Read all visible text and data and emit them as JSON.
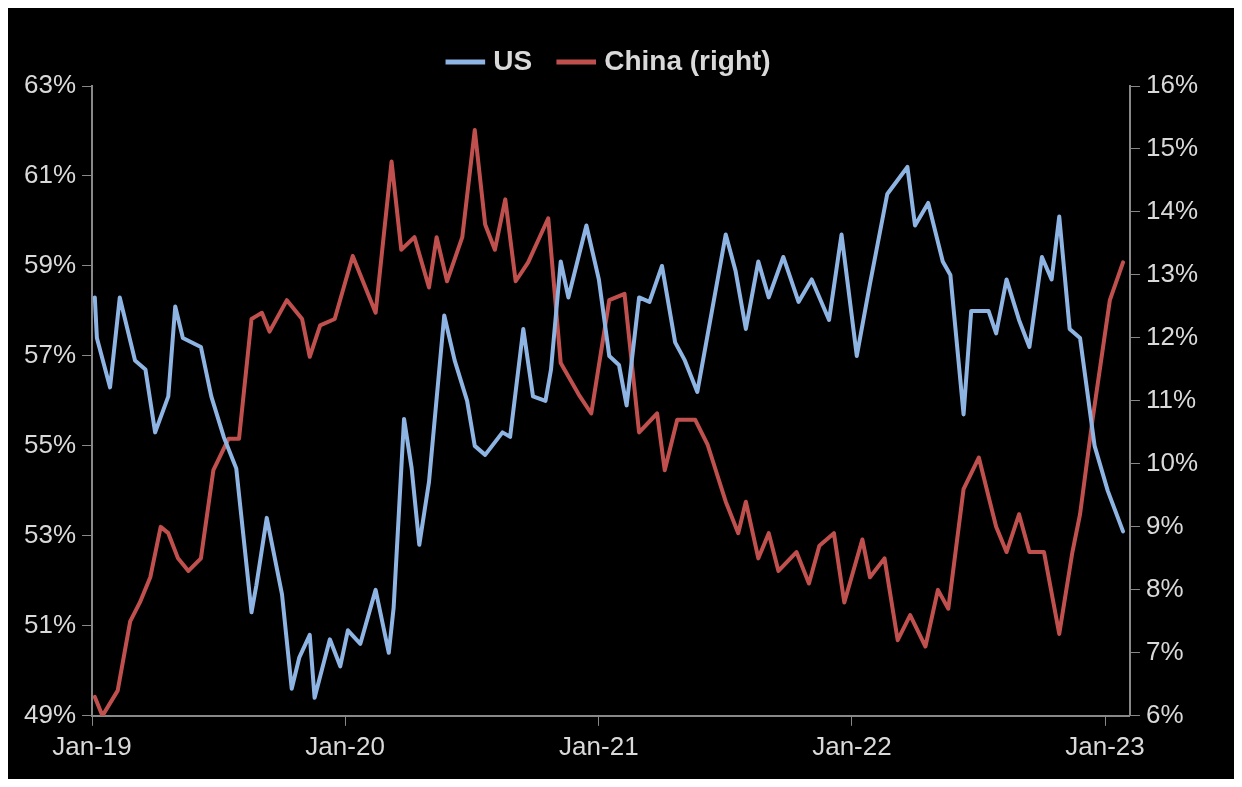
{
  "chart_data": {
    "type": "line",
    "legend": "top",
    "marker": "none",
    "line_style": "solid",
    "grid": false,
    "xlim": [
      "2019-01-01",
      "2023-02-06"
    ],
    "xticks": [
      {
        "value": "2019-01",
        "label": "Jan-19"
      },
      {
        "value": "2020-01",
        "label": "Jan-20"
      },
      {
        "value": "2021-01",
        "label": "Jan-21"
      },
      {
        "value": "2022-01",
        "label": "Jan-22"
      },
      {
        "value": "2023-01",
        "label": "Jan-23"
      }
    ],
    "ylim": [
      49,
      63
    ],
    "yticks": [
      {
        "value": 49,
        "label": "49%"
      },
      {
        "value": 51,
        "label": "51%"
      },
      {
        "value": 53,
        "label": "53%"
      },
      {
        "value": 55,
        "label": "55%"
      },
      {
        "value": 57,
        "label": "57%"
      },
      {
        "value": 59,
        "label": "59%"
      },
      {
        "value": 61,
        "label": "61%"
      },
      {
        "value": 63,
        "label": "63%"
      }
    ],
    "y2lim": [
      6,
      16
    ],
    "y2ticks": [
      {
        "value": 6,
        "label": "6%"
      },
      {
        "value": 7,
        "label": "7%"
      },
      {
        "value": 8,
        "label": "8%"
      },
      {
        "value": 9,
        "label": "9%"
      },
      {
        "value": 10,
        "label": "10%"
      },
      {
        "value": 11,
        "label": "11%"
      },
      {
        "value": 12,
        "label": "12%"
      },
      {
        "value": 13,
        "label": "13%"
      },
      {
        "value": 14,
        "label": "14%"
      },
      {
        "value": 15,
        "label": "15%"
      },
      {
        "value": 16,
        "label": "16%"
      }
    ],
    "series": [
      {
        "name": "US",
        "color": "#8db4e2",
        "x": [
          "2019-01-05",
          "2019-01-08",
          "2019-01-27",
          "2019-02-10",
          "2019-03-04",
          "2019-03-19",
          "2019-04-02",
          "2019-04-21",
          "2019-05-01",
          "2019-05-12",
          "2019-06-07",
          "2019-06-22",
          "2019-07-10",
          "2019-07-28",
          "2019-08-19",
          "2019-08-26",
          "2019-09-10",
          "2019-10-02",
          "2019-10-16",
          "2019-10-27",
          "2019-11-11",
          "2019-11-18",
          "2019-12-10",
          "2019-12-25",
          "2020-01-05",
          "2020-01-23",
          "2020-02-14",
          "2020-03-04",
          "2020-03-11",
          "2020-03-26",
          "2020-04-06",
          "2020-04-17",
          "2020-05-01",
          "2020-05-23",
          "2020-06-07",
          "2020-06-25",
          "2020-07-06",
          "2020-07-21",
          "2020-08-15",
          "2020-08-26",
          "2020-09-14",
          "2020-09-28",
          "2020-10-16",
          "2020-10-24",
          "2020-11-07",
          "2020-11-18",
          "2020-12-14",
          "2021-01-01",
          "2021-01-16",
          "2021-01-30",
          "2021-02-10",
          "2021-02-28",
          "2021-03-15",
          "2021-04-02",
          "2021-04-21",
          "2021-05-05",
          "2021-05-23",
          "2021-07-03",
          "2021-07-17",
          "2021-08-01",
          "2021-08-19",
          "2021-09-03",
          "2021-09-24",
          "2021-10-16",
          "2021-11-04",
          "2021-11-29",
          "2021-12-17",
          "2022-01-08",
          "2022-01-27",
          "2022-02-21",
          "2022-03-22",
          "2022-04-02",
          "2022-04-21",
          "2022-05-12",
          "2022-05-23",
          "2022-06-11",
          "2022-06-22",
          "2022-07-17",
          "2022-07-28",
          "2022-08-12",
          "2022-08-30",
          "2022-09-14",
          "2022-10-02",
          "2022-10-16",
          "2022-10-27",
          "2022-11-11",
          "2022-11-26",
          "2022-12-17",
          "2023-01-05",
          "2023-01-27"
        ],
        "values": [
          58.3,
          57.4,
          56.3,
          58.3,
          56.9,
          56.7,
          55.3,
          56.1,
          58.1,
          57.4,
          57.2,
          56.1,
          55.2,
          54.5,
          51.3,
          51.9,
          53.4,
          51.7,
          49.6,
          50.3,
          50.8,
          49.4,
          50.7,
          50.1,
          50.9,
          50.6,
          51.8,
          50.4,
          51.4,
          55.6,
          54.5,
          52.8,
          54.2,
          57.9,
          56.9,
          56.0,
          55.0,
          54.8,
          55.3,
          55.2,
          57.6,
          56.1,
          56.0,
          56.7,
          59.1,
          58.3,
          59.9,
          58.7,
          57.0,
          56.8,
          55.9,
          58.3,
          58.2,
          59.0,
          57.3,
          56.9,
          56.2,
          59.7,
          58.9,
          57.6,
          59.1,
          58.3,
          59.2,
          58.2,
          58.7,
          57.8,
          59.7,
          57.0,
          58.6,
          60.6,
          61.2,
          59.9,
          60.4,
          59.1,
          58.8,
          55.7,
          58.0,
          58.0,
          57.5,
          58.7,
          57.8,
          57.2,
          59.2,
          58.7,
          60.1,
          57.6,
          57.4,
          55.0,
          54.0,
          53.1
        ]
      },
      {
        "name": "China (right)",
        "color": "#c0504d",
        "axis": "y2",
        "x": [
          "2019-01-05",
          "2019-01-16",
          "2019-02-07",
          "2019-02-25",
          "2019-03-11",
          "2019-03-26",
          "2019-04-10",
          "2019-04-21",
          "2019-05-05",
          "2019-05-20",
          "2019-06-07",
          "2019-06-25",
          "2019-07-17",
          "2019-08-01",
          "2019-08-19",
          "2019-09-03",
          "2019-09-14",
          "2019-10-09",
          "2019-10-31",
          "2019-11-11",
          "2019-11-26",
          "2019-12-17",
          "2020-01-12",
          "2020-02-14",
          "2020-03-08",
          "2020-03-22",
          "2020-04-10",
          "2020-05-01",
          "2020-05-12",
          "2020-05-27",
          "2020-06-18",
          "2020-07-06",
          "2020-07-21",
          "2020-08-04",
          "2020-08-19",
          "2020-09-03",
          "2020-09-21",
          "2020-10-20",
          "2020-11-07",
          "2020-12-03",
          "2020-12-21",
          "2021-01-16",
          "2021-02-07",
          "2021-02-28",
          "2021-03-26",
          "2021-04-06",
          "2021-04-24",
          "2021-05-20",
          "2021-06-07",
          "2021-07-03",
          "2021-07-21",
          "2021-08-01",
          "2021-08-19",
          "2021-09-03",
          "2021-09-17",
          "2021-10-13",
          "2021-10-31",
          "2021-11-15",
          "2021-12-06",
          "2021-12-21",
          "2022-01-16",
          "2022-01-27",
          "2022-02-17",
          "2022-03-08",
          "2022-03-26",
          "2022-04-17",
          "2022-05-05",
          "2022-05-20",
          "2022-06-11",
          "2022-07-03",
          "2022-07-28",
          "2022-08-12",
          "2022-08-30",
          "2022-09-14",
          "2022-10-05",
          "2022-10-27",
          "2022-11-15",
          "2022-11-26",
          "2022-12-14",
          "2023-01-08",
          "2023-01-27"
        ],
        "values": [
          6.3,
          6.0,
          6.4,
          7.5,
          7.8,
          8.2,
          9.0,
          8.9,
          8.5,
          8.3,
          8.5,
          9.9,
          10.4,
          10.4,
          12.3,
          12.4,
          12.1,
          12.6,
          12.3,
          11.7,
          12.2,
          12.3,
          13.3,
          12.4,
          14.8,
          13.4,
          13.6,
          12.8,
          13.6,
          12.9,
          13.6,
          15.3,
          13.8,
          13.4,
          14.2,
          12.9,
          13.2,
          13.9,
          11.6,
          11.1,
          10.8,
          12.6,
          12.7,
          10.5,
          10.8,
          9.9,
          10.7,
          10.7,
          10.3,
          9.4,
          8.9,
          9.4,
          8.5,
          8.9,
          8.3,
          8.6,
          8.1,
          8.7,
          8.9,
          7.8,
          8.8,
          8.2,
          8.5,
          7.2,
          7.6,
          7.1,
          8.0,
          7.7,
          9.6,
          10.1,
          9.0,
          8.6,
          9.2,
          8.6,
          8.6,
          7.3,
          8.6,
          9.2,
          10.7,
          12.6,
          13.2
        ]
      }
    ]
  }
}
